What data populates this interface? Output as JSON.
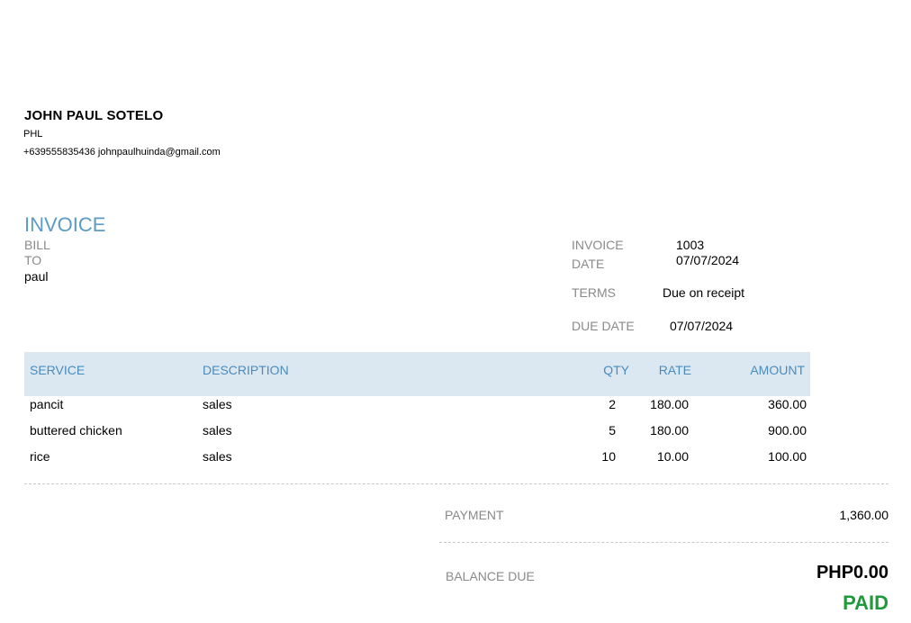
{
  "company": {
    "name": "JOHN PAUL SOTELO",
    "country": "PHL",
    "contact": "+639555835436 johnpaulhuinda@gmail.com"
  },
  "invoice": {
    "title": "INVOICE",
    "bill_to_label_1": "BILL",
    "bill_to_label_2": "TO",
    "bill_to_name": "paul",
    "invoice_label_1": "INVOICE",
    "invoice_label_2": "DATE",
    "invoice_number": "1003",
    "invoice_date": "07/07/2024",
    "terms_label": "TERMS",
    "terms_value": "Due on receipt",
    "due_date_label": "DUE DATE",
    "due_date_value": "07/07/2024"
  },
  "table": {
    "headers": {
      "service": "SERVICE",
      "description": "DESCRIPTION",
      "qty": "QTY",
      "rate": "RATE",
      "amount": "AMOUNT"
    },
    "rows": [
      {
        "service": "pancit",
        "description": "sales",
        "qty": "2",
        "rate": "180.00",
        "amount": "360.00"
      },
      {
        "service": "buttered chicken",
        "description": "sales",
        "qty": "5",
        "rate": "180.00",
        "amount": "900.00"
      },
      {
        "service": "rice",
        "description": "sales",
        "qty": "10",
        "rate": "10.00",
        "amount": "100.00"
      }
    ]
  },
  "totals": {
    "payment_label": "PAYMENT",
    "payment_value": "1,360.00",
    "balance_label": "BALANCE DUE",
    "balance_value": "PHP0.00",
    "status": "PAID"
  },
  "colors": {
    "accent": "#5b9bc6",
    "header_bg": "#dce8f1",
    "paid": "#1f9a3a"
  }
}
